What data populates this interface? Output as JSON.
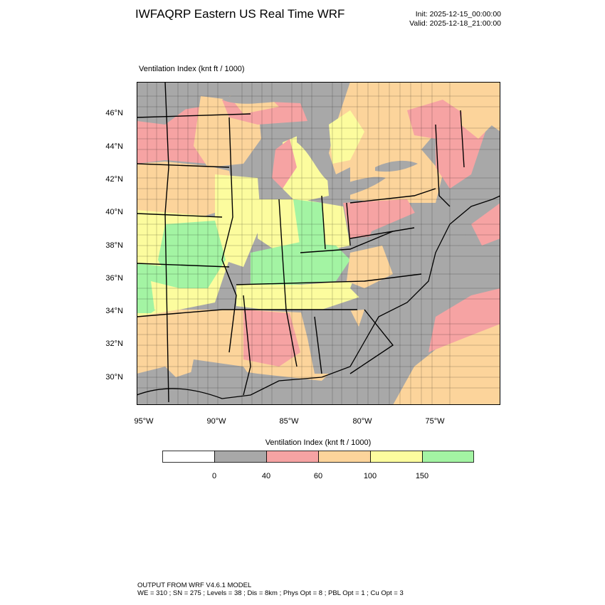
{
  "header": {
    "title": "IWFAQRP Eastern US Real Time WRF",
    "init": "Init: 2025-12-15_00:00:00",
    "valid": "Valid: 2025-12-18_21:00:00"
  },
  "panel": {
    "title": "Ventilation Index   (knt ft / 1000)"
  },
  "map": {
    "lat_labels": [
      "46°N",
      "44°N",
      "42°N",
      "40°N",
      "38°N",
      "36°N",
      "34°N",
      "32°N",
      "30°N"
    ],
    "lon_labels": [
      "95°W",
      "90°W",
      "85°W",
      "80°W",
      "75°W"
    ],
    "colors": {
      "gray": "#a8a8a8",
      "red": "#f6a3a3",
      "orange": "#fcd49b",
      "yellow": "#fcfc9e",
      "green": "#a3f4a3",
      "white": "#ffffff"
    }
  },
  "legend": {
    "title": "Ventilation Index  (knt ft / 1000)",
    "colors": [
      "#ffffff",
      "#a8a8a8",
      "#f6a3a3",
      "#fcd49b",
      "#fcfc9e",
      "#a3f4a3"
    ],
    "ticks": [
      "0",
      "40",
      "60",
      "100",
      "150"
    ]
  },
  "footer": {
    "line1": "OUTPUT FROM WRF V4.6.1 MODEL",
    "line2": "WE = 310 ; SN = 275 ; Levels = 38 ; Dis = 8km ; Phys Opt = 8 ; PBL Opt = 1 ; Cu Opt = 3"
  }
}
